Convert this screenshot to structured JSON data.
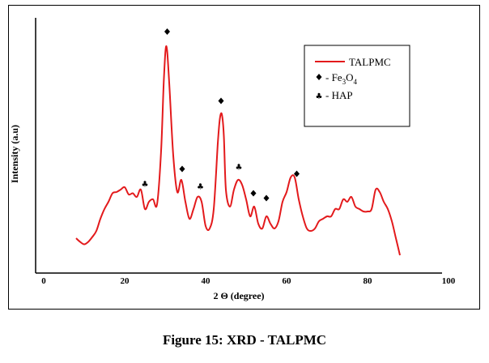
{
  "chart_data": {
    "type": "line",
    "title": "",
    "xlabel": "2 Θ (degree)",
    "ylabel": "Intensity (a.u)",
    "xlim": [
      0,
      100
    ],
    "ylim": [
      0,
      100
    ],
    "xticks": [
      "0",
      "20",
      "40",
      "60",
      "80",
      "100"
    ],
    "grid": false,
    "legend_position": "top-right",
    "series": [
      {
        "name": "TALPMC",
        "color": "#e31a1c",
        "x": [
          8,
          9,
          10,
          11,
          12,
          13,
          14,
          15,
          16,
          17,
          18,
          19,
          20,
          21,
          22,
          23,
          24,
          25,
          26,
          27,
          28,
          29,
          29.7,
          30.3,
          31,
          32,
          33,
          34,
          35,
          36,
          37,
          38,
          39,
          40,
          41,
          42,
          43,
          43.5,
          44,
          44.5,
          45,
          46,
          47,
          48,
          49,
          50,
          51,
          52,
          53,
          54,
          55,
          56,
          57,
          58,
          59,
          60,
          61,
          62,
          63,
          64,
          65,
          66,
          67,
          68,
          69,
          70,
          71,
          72,
          73,
          74,
          75,
          76,
          77,
          78,
          79,
          80,
          81,
          82,
          83,
          84,
          85,
          86,
          87,
          88
        ],
        "values": [
          12,
          10.5,
          9.5,
          10.5,
          12.5,
          15,
          20,
          24,
          27,
          30.5,
          31,
          32,
          33,
          30,
          30.5,
          29,
          32,
          24,
          27,
          28,
          26,
          48,
          78,
          91,
          76,
          46,
          31,
          36,
          27,
          20,
          24,
          29,
          27,
          17,
          16,
          24,
          51,
          61,
          63,
          54,
          32,
          25,
          32,
          36,
          34,
          28,
          21,
          25,
          18,
          16,
          21,
          18,
          16,
          19,
          27,
          31,
          37,
          37,
          28,
          21,
          16,
          15,
          16,
          19,
          20,
          21,
          21,
          24,
          24,
          28,
          27,
          29,
          25,
          24,
          23,
          23,
          24,
          32,
          31,
          27,
          24,
          19,
          12,
          5
        ]
      }
    ],
    "legend": [
      {
        "label": "TALPMC",
        "symbol": "line"
      },
      {
        "label": "- Fe3O4",
        "symbol": "diamond",
        "label_base": "- Fe",
        "sub1": "3",
        "mid": "O",
        "sub2": "4"
      },
      {
        "label": "- HAP",
        "symbol": "club"
      }
    ],
    "annotations": [
      {
        "x": 30.5,
        "y": 97,
        "symbol": "diamond",
        "phase": "Fe3O4"
      },
      {
        "x": 34.2,
        "y": 40.5,
        "symbol": "diamond",
        "phase": "Fe3O4"
      },
      {
        "x": 43.8,
        "y": 68.5,
        "symbol": "diamond",
        "phase": "Fe3O4"
      },
      {
        "x": 51.8,
        "y": 30.5,
        "symbol": "diamond",
        "phase": "Fe3O4"
      },
      {
        "x": 55.0,
        "y": 28.5,
        "symbol": "diamond",
        "phase": "Fe3O4"
      },
      {
        "x": 62.5,
        "y": 38.5,
        "symbol": "diamond",
        "phase": "Fe3O4"
      },
      {
        "x": 25.0,
        "y": 34.5,
        "symbol": "club",
        "phase": "HAP"
      },
      {
        "x": 38.7,
        "y": 33.5,
        "symbol": "club",
        "phase": "HAP"
      },
      {
        "x": 48.2,
        "y": 41.5,
        "symbol": "club",
        "phase": "HAP"
      }
    ]
  },
  "caption": "Figure 15: XRD - TALPMC"
}
